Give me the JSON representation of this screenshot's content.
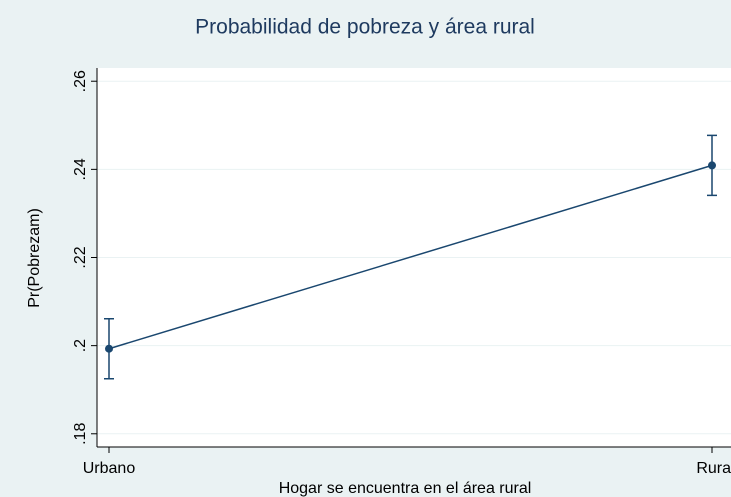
{
  "chart_data": {
    "type": "line",
    "title": "Probabilidad de pobreza y área rural",
    "x_label": "Hogar se encuentra en el área rural",
    "y_label": "Pr(Pobrezam)",
    "categories": [
      "Urbano",
      "Rura"
    ],
    "series": [
      {
        "color": "#1a476f",
        "values": [
          0.1993,
          0.2409
        ],
        "ci_lower": [
          0.1925,
          0.2341
        ],
        "ci_upper": [
          0.2061,
          0.2477
        ]
      }
    ],
    "ylim": [
      0.177,
      0.263
    ],
    "yticks": [
      {
        "value": 0.18,
        "label": ".18"
      },
      {
        "value": 0.2,
        "label": ".2"
      },
      {
        "value": 0.22,
        "label": ".22"
      },
      {
        "value": 0.24,
        "label": ".24"
      },
      {
        "value": 0.26,
        "label": ".26"
      }
    ],
    "grid": true
  }
}
